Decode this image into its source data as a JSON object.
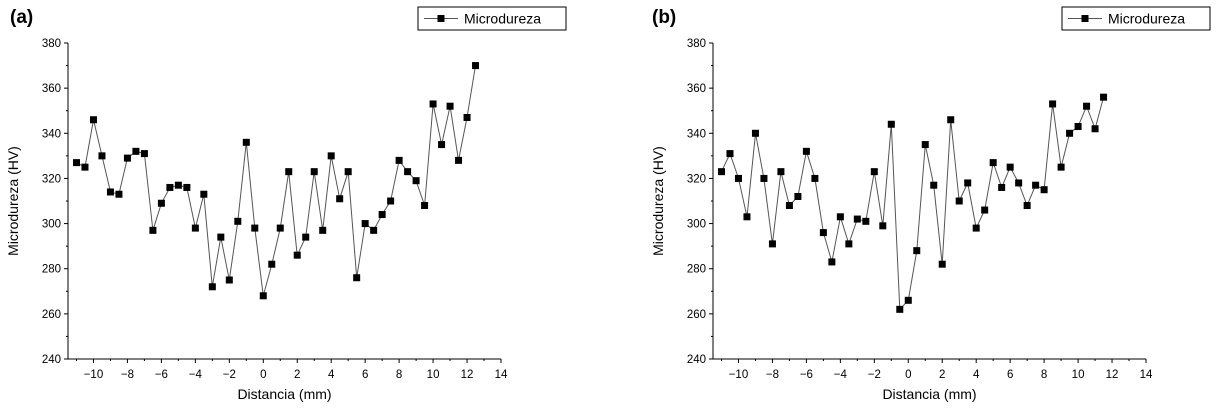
{
  "chart_data": [
    {
      "type": "line",
      "panel_label": "(a)",
      "xlabel": "Distancia (mm)",
      "ylabel": "Microdureza (HV)",
      "xlim": [
        -11.5,
        14
      ],
      "ylim": [
        240,
        380
      ],
      "xticks": [
        -10,
        -8,
        -6,
        -4,
        -2,
        0,
        2,
        4,
        6,
        8,
        10,
        12,
        14
      ],
      "yticks": [
        240,
        260,
        280,
        300,
        320,
        340,
        360,
        380
      ],
      "grid": false,
      "legend_position": "top-right",
      "series": [
        {
          "name": "Microdureza",
          "marker": "square",
          "x": [
            -11.0,
            -10.5,
            -10.0,
            -9.5,
            -9.0,
            -8.5,
            -8.0,
            -7.5,
            -7.0,
            -6.5,
            -6.0,
            -5.5,
            -5.0,
            -4.5,
            -4.0,
            -3.5,
            -3.0,
            -2.5,
            -2.0,
            -1.5,
            -1.0,
            -0.5,
            0.0,
            0.5,
            1.0,
            1.5,
            2.0,
            2.5,
            3.0,
            3.5,
            4.0,
            4.5,
            5.0,
            5.5,
            6.0,
            6.5,
            7.0,
            7.5,
            8.0,
            8.5,
            9.0,
            9.5,
            10.0,
            10.5,
            11.0,
            11.5,
            12.0,
            12.5
          ],
          "y": [
            327,
            325,
            346,
            330,
            314,
            313,
            329,
            332,
            331,
            297,
            309,
            316,
            317,
            316,
            298,
            313,
            272,
            294,
            275,
            301,
            336,
            298,
            268,
            282,
            298,
            323,
            286,
            294,
            323,
            297,
            330,
            311,
            323,
            276,
            300,
            297,
            304,
            310,
            328,
            323,
            319,
            308,
            353,
            335,
            352,
            328,
            347,
            370
          ]
        }
      ]
    },
    {
      "type": "line",
      "panel_label": "(b)",
      "xlabel": "Distancia (mm)",
      "ylabel": "Microdureza (HV)",
      "xlim": [
        -11.5,
        14
      ],
      "ylim": [
        240,
        380
      ],
      "xticks": [
        -10,
        -8,
        -6,
        -4,
        -2,
        0,
        2,
        4,
        6,
        8,
        10,
        12,
        14
      ],
      "yticks": [
        240,
        260,
        280,
        300,
        320,
        340,
        360,
        380
      ],
      "grid": false,
      "legend_position": "top-right",
      "series": [
        {
          "name": "Microdureza",
          "marker": "square",
          "x": [
            -11.0,
            -10.5,
            -10.0,
            -9.5,
            -9.0,
            -8.5,
            -8.0,
            -7.5,
            -7.0,
            -6.5,
            -6.0,
            -5.5,
            -5.0,
            -4.5,
            -4.0,
            -3.5,
            -3.0,
            -2.5,
            -2.0,
            -1.5,
            -1.0,
            -0.5,
            0.0,
            0.5,
            1.0,
            1.5,
            2.0,
            2.5,
            3.0,
            3.5,
            4.0,
            4.5,
            5.0,
            5.5,
            6.0,
            6.5,
            7.0,
            7.5,
            8.0,
            8.5,
            9.0,
            9.5,
            10.0,
            10.5,
            11.0,
            11.5
          ],
          "y": [
            323,
            331,
            320,
            303,
            340,
            320,
            291,
            323,
            308,
            312,
            332,
            320,
            296,
            283,
            303,
            291,
            302,
            301,
            323,
            299,
            344,
            262,
            266,
            288,
            335,
            317,
            282,
            346,
            310,
            318,
            298,
            306,
            327,
            316,
            325,
            318,
            308,
            317,
            315,
            353,
            325,
            340,
            343,
            352,
            342,
            356
          ]
        }
      ]
    }
  ]
}
